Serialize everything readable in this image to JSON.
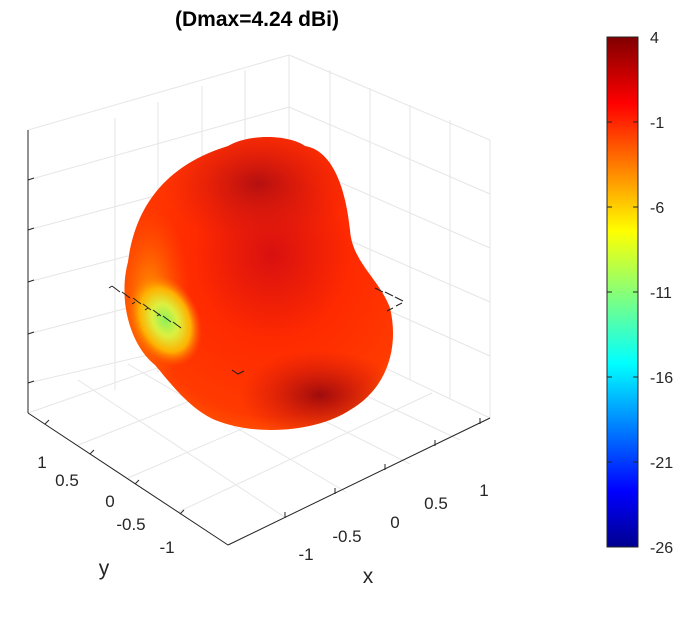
{
  "chart_data": {
    "type": "surface-3d",
    "title": "(Dmax=4.24 dBi)",
    "xlabel": "x",
    "ylabel": "y",
    "zlabel": "",
    "x_ticks": [
      "-1",
      "-0.5",
      "0",
      "0.5",
      "1"
    ],
    "y_ticks": [
      "1",
      "0.5",
      "0",
      "-0.5",
      "-1"
    ],
    "colorbar": {
      "colormap": "jet",
      "range": [
        -26,
        4
      ],
      "unit": "dBi",
      "ticks": [
        "4",
        "-1",
        "-6",
        "-11",
        "-16",
        "-21",
        "-26"
      ]
    },
    "directivity_max_dBi": 4.24,
    "surface_description": "3D radiation pattern lobe, mostly red (high directivity) with a yellow-green minimum on the left side",
    "colors": {
      "high": "#a50f0f",
      "mid": "#ff2200",
      "low": "#9ef050"
    }
  }
}
